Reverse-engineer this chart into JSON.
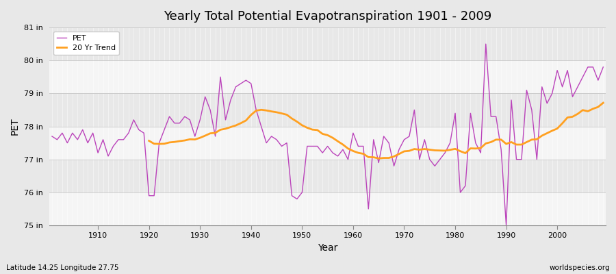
{
  "title": "Yearly Total Potential Evapotranspiration 1901 - 2009",
  "xlabel": "Year",
  "ylabel": "PET",
  "subtitle_left": "Latitude 14.25 Longitude 27.75",
  "subtitle_right": "worldspecies.org",
  "pet_color": "#BB44BB",
  "trend_color": "#FFA020",
  "bg_color": "#E8E8E8",
  "plot_bg_color": "#F5F5F5",
  "band_color1": "#F5F5F5",
  "band_color2": "#E8E8E8",
  "ylim": [
    75,
    81
  ],
  "yticks": [
    75,
    76,
    77,
    78,
    79,
    80,
    81
  ],
  "ytick_labels": [
    "75 in",
    "76 in",
    "77 in",
    "78 in",
    "79 in",
    "80 in",
    "81 in"
  ],
  "years": [
    1901,
    1902,
    1903,
    1904,
    1905,
    1906,
    1907,
    1908,
    1909,
    1910,
    1911,
    1912,
    1913,
    1914,
    1915,
    1916,
    1917,
    1918,
    1919,
    1920,
    1921,
    1922,
    1923,
    1924,
    1925,
    1926,
    1927,
    1928,
    1929,
    1930,
    1931,
    1932,
    1933,
    1934,
    1935,
    1936,
    1937,
    1938,
    1939,
    1940,
    1941,
    1942,
    1943,
    1944,
    1945,
    1946,
    1947,
    1948,
    1949,
    1950,
    1951,
    1952,
    1953,
    1954,
    1955,
    1956,
    1957,
    1958,
    1959,
    1960,
    1961,
    1962,
    1963,
    1964,
    1965,
    1966,
    1967,
    1968,
    1969,
    1970,
    1971,
    1972,
    1973,
    1974,
    1975,
    1976,
    1977,
    1978,
    1979,
    1980,
    1981,
    1982,
    1983,
    1984,
    1985,
    1986,
    1987,
    1988,
    1989,
    1990,
    1991,
    1992,
    1993,
    1994,
    1995,
    1996,
    1997,
    1998,
    1999,
    2000,
    2001,
    2002,
    2003,
    2004,
    2005,
    2006,
    2007,
    2008,
    2009
  ],
  "pet_values": [
    77.7,
    77.6,
    77.8,
    77.5,
    77.8,
    77.6,
    77.9,
    77.5,
    77.8,
    77.2,
    77.6,
    77.1,
    77.4,
    77.6,
    77.6,
    77.8,
    78.2,
    77.9,
    77.8,
    75.9,
    75.9,
    77.5,
    77.9,
    78.3,
    78.1,
    78.1,
    78.3,
    78.2,
    77.7,
    78.2,
    78.9,
    78.5,
    77.7,
    79.5,
    78.2,
    78.8,
    79.2,
    79.3,
    79.4,
    79.3,
    78.5,
    78.0,
    77.5,
    77.7,
    77.6,
    77.4,
    77.5,
    75.9,
    75.8,
    76.0,
    77.4,
    77.4,
    77.4,
    77.2,
    77.4,
    77.2,
    77.1,
    77.3,
    77.0,
    77.8,
    77.4,
    77.4,
    75.5,
    77.6,
    76.9,
    77.7,
    77.5,
    76.8,
    77.3,
    77.6,
    77.7,
    78.5,
    77.0,
    77.6,
    77.0,
    76.8,
    77.0,
    77.2,
    77.5,
    78.4,
    76.0,
    76.2,
    78.4,
    77.5,
    77.2,
    80.5,
    78.3,
    78.3,
    77.3,
    75.0,
    78.8,
    77.0,
    77.0,
    79.1,
    78.5,
    77.0,
    79.2,
    78.7,
    79.0,
    79.7,
    79.2,
    79.7,
    78.9,
    79.2,
    79.5,
    79.8,
    79.8,
    79.4,
    79.8
  ]
}
